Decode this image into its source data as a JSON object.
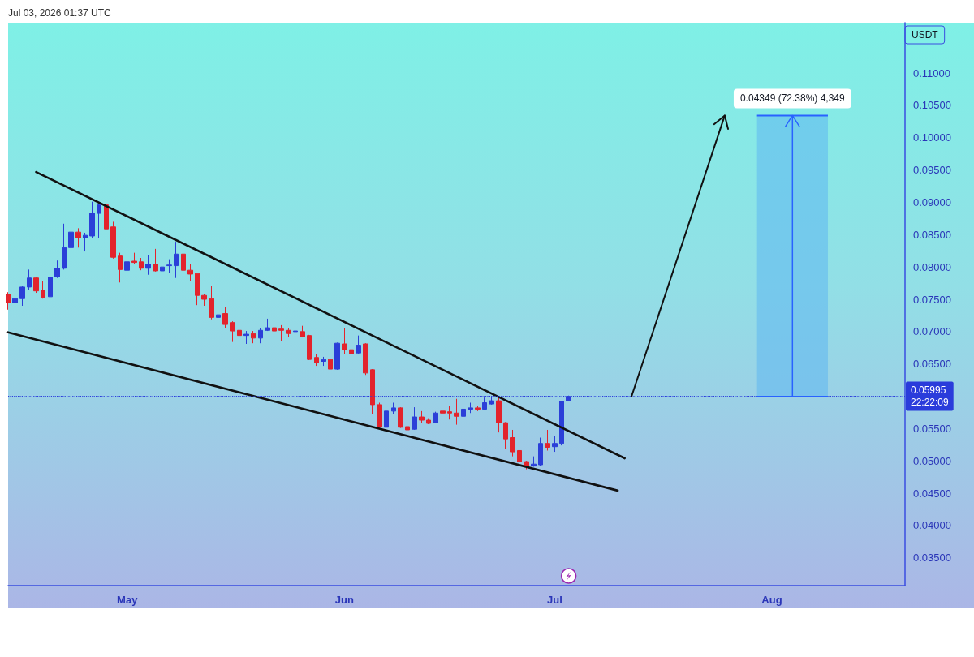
{
  "chart_data": {
    "type": "candlestick",
    "annotations": [
      "Jul 03, 2026 01:37 UTC"
    ],
    "ylabel": "USDT",
    "xlim": [
      "2026-04-14",
      "2026-08-20"
    ],
    "xticks": [
      {
        "value": "2026-05-01",
        "label": "May"
      },
      {
        "value": "2026-06-01",
        "label": "Jun"
      },
      {
        "value": "2026-07-01",
        "label": "Jul"
      },
      {
        "value": "2026-08-01",
        "label": "Aug"
      }
    ],
    "ylim": [
      0.0307,
      0.1178
    ],
    "yticks": [
      {
        "value": 0.035,
        "label": "0.03500"
      },
      {
        "value": 0.04,
        "label": "0.04000"
      },
      {
        "value": 0.045,
        "label": "0.04500"
      },
      {
        "value": 0.05,
        "label": "0.05000"
      },
      {
        "value": 0.055,
        "label": "0.05500"
      },
      {
        "value": 0.065,
        "label": "0.06500"
      },
      {
        "value": 0.07,
        "label": "0.07000"
      },
      {
        "value": 0.075,
        "label": "0.07500"
      },
      {
        "value": 0.08,
        "label": "0.08000"
      },
      {
        "value": 0.085,
        "label": "0.08500"
      },
      {
        "value": 0.09,
        "label": "0.09000"
      },
      {
        "value": 0.095,
        "label": "0.09500"
      },
      {
        "value": 0.1,
        "label": "0.10000"
      },
      {
        "value": 0.105,
        "label": "0.10500"
      },
      {
        "value": 0.11,
        "label": "0.11000"
      }
    ],
    "series": [
      {
        "x": [
          "2026-04-14",
          "2026-04-15",
          "2026-04-16",
          "2026-04-17",
          "2026-04-18",
          "2026-04-19",
          "2026-04-20",
          "2026-04-21",
          "2026-04-22",
          "2026-04-23",
          "2026-04-24",
          "2026-04-25",
          "2026-04-26",
          "2026-04-27",
          "2026-04-28",
          "2026-04-29",
          "2026-04-30",
          "2026-05-01",
          "2026-05-02",
          "2026-05-03",
          "2026-05-04",
          "2026-05-05",
          "2026-05-06",
          "2026-05-07",
          "2026-05-08",
          "2026-05-09",
          "2026-05-10",
          "2026-05-11",
          "2026-05-12",
          "2026-05-13",
          "2026-05-14",
          "2026-05-15",
          "2026-05-16",
          "2026-05-17",
          "2026-05-18",
          "2026-05-19",
          "2026-05-20",
          "2026-05-21",
          "2026-05-22",
          "2026-05-23",
          "2026-05-24",
          "2026-05-25",
          "2026-05-26",
          "2026-05-27",
          "2026-05-28",
          "2026-05-29",
          "2026-05-30",
          "2026-05-31",
          "2026-06-01",
          "2026-06-02",
          "2026-06-03",
          "2026-06-04",
          "2026-06-05",
          "2026-06-06",
          "2026-06-07",
          "2026-06-08",
          "2026-06-09",
          "2026-06-10",
          "2026-06-11",
          "2026-06-12",
          "2026-06-13",
          "2026-06-14",
          "2026-06-15",
          "2026-06-16",
          "2026-06-17",
          "2026-06-18",
          "2026-06-19",
          "2026-06-20",
          "2026-06-21",
          "2026-06-22",
          "2026-06-23",
          "2026-06-24",
          "2026-06-25",
          "2026-06-26",
          "2026-06-27",
          "2026-06-28",
          "2026-06-29",
          "2026-06-30",
          "2026-07-01",
          "2026-07-02",
          "2026-07-03"
        ],
        "ohlc": [
          [
            0.0758,
            0.0761,
            0.0734,
            0.0745
          ],
          [
            0.0745,
            0.0756,
            0.0738,
            0.0751
          ],
          [
            0.0751,
            0.0771,
            0.074,
            0.0769
          ],
          [
            0.0769,
            0.0796,
            0.0764,
            0.0783
          ],
          [
            0.0783,
            0.0784,
            0.076,
            0.0763
          ],
          [
            0.0764,
            0.0778,
            0.0751,
            0.0753
          ],
          [
            0.0754,
            0.0814,
            0.0752,
            0.0784
          ],
          [
            0.0785,
            0.081,
            0.0783,
            0.0798
          ],
          [
            0.0798,
            0.0867,
            0.0796,
            0.083
          ],
          [
            0.083,
            0.0865,
            0.0813,
            0.0854
          ],
          [
            0.0854,
            0.086,
            0.083,
            0.0845
          ],
          [
            0.0845,
            0.0853,
            0.0824,
            0.0849
          ],
          [
            0.0848,
            0.0901,
            0.0845,
            0.0883
          ],
          [
            0.0883,
            0.0898,
            0.0845,
            0.0896
          ],
          [
            0.0896,
            0.0897,
            0.0858,
            0.0859
          ],
          [
            0.0862,
            0.087,
            0.0813,
            0.0815
          ],
          [
            0.0817,
            0.0822,
            0.0776,
            0.0796
          ],
          [
            0.0795,
            0.0824,
            0.0794,
            0.0808
          ],
          [
            0.0809,
            0.0822,
            0.0805,
            0.0807
          ],
          [
            0.0808,
            0.0814,
            0.0795,
            0.0798
          ],
          [
            0.0798,
            0.0818,
            0.0788,
            0.0804
          ],
          [
            0.0804,
            0.0828,
            0.0793,
            0.0794
          ],
          [
            0.0794,
            0.0814,
            0.0791,
            0.08
          ],
          [
            0.0802,
            0.0812,
            0.0791,
            0.0803
          ],
          [
            0.0802,
            0.0839,
            0.0783,
            0.082
          ],
          [
            0.082,
            0.0848,
            0.0788,
            0.0795
          ],
          [
            0.0795,
            0.0804,
            0.0778,
            0.0789
          ],
          [
            0.079,
            0.0791,
            0.0741,
            0.0756
          ],
          [
            0.0756,
            0.0758,
            0.074,
            0.075
          ],
          [
            0.0751,
            0.0771,
            0.0719,
            0.0722
          ],
          [
            0.0722,
            0.0739,
            0.0714,
            0.0726
          ],
          [
            0.0728,
            0.0738,
            0.0705,
            0.0711
          ],
          [
            0.0714,
            0.0716,
            0.0684,
            0.0701
          ],
          [
            0.0702,
            0.0706,
            0.0684,
            0.0694
          ],
          [
            0.0694,
            0.0701,
            0.0681,
            0.0696
          ],
          [
            0.0697,
            0.0701,
            0.0682,
            0.069
          ],
          [
            0.069,
            0.0705,
            0.0682,
            0.0702
          ],
          [
            0.0702,
            0.072,
            0.0701,
            0.0706
          ],
          [
            0.0706,
            0.0714,
            0.0697,
            0.0701
          ],
          [
            0.0704,
            0.071,
            0.0685,
            0.0702
          ],
          [
            0.0702,
            0.0706,
            0.0691,
            0.0697
          ],
          [
            0.07,
            0.0707,
            0.0697,
            0.0701
          ],
          [
            0.07,
            0.0709,
            0.0691,
            0.0692
          ],
          [
            0.0694,
            0.0695,
            0.0656,
            0.0657
          ],
          [
            0.066,
            0.0665,
            0.0647,
            0.0652
          ],
          [
            0.0654,
            0.0661,
            0.0647,
            0.0657
          ],
          [
            0.0657,
            0.0661,
            0.064,
            0.0642
          ],
          [
            0.0642,
            0.0683,
            0.0641,
            0.0682
          ],
          [
            0.0681,
            0.0705,
            0.0665,
            0.0672
          ],
          [
            0.0672,
            0.069,
            0.0665,
            0.0666
          ],
          [
            0.0667,
            0.0694,
            0.0665,
            0.0679
          ],
          [
            0.0681,
            0.0682,
            0.0633,
            0.0636
          ],
          [
            0.0641,
            0.0642,
            0.0573,
            0.0587
          ],
          [
            0.0587,
            0.059,
            0.0551,
            0.0552
          ],
          [
            0.0552,
            0.059,
            0.0551,
            0.0577
          ],
          [
            0.0577,
            0.059,
            0.0573,
            0.0582
          ],
          [
            0.0582,
            0.0583,
            0.0551,
            0.0552
          ],
          [
            0.0553,
            0.0564,
            0.0539,
            0.0548
          ],
          [
            0.0549,
            0.0583,
            0.0548,
            0.0568
          ],
          [
            0.0568,
            0.0577,
            0.0559,
            0.0563
          ],
          [
            0.0563,
            0.0566,
            0.0557,
            0.0558
          ],
          [
            0.0559,
            0.0576,
            0.0558,
            0.0574
          ],
          [
            0.0577,
            0.0585,
            0.0562,
            0.0574
          ],
          [
            0.0576,
            0.0585,
            0.0564,
            0.0574
          ],
          [
            0.0574,
            0.0596,
            0.0556,
            0.0569
          ],
          [
            0.0569,
            0.059,
            0.0559,
            0.058
          ],
          [
            0.058,
            0.059,
            0.0574,
            0.0582
          ],
          [
            0.0582,
            0.0585,
            0.0577,
            0.058
          ],
          [
            0.058,
            0.0598,
            0.0579,
            0.059
          ],
          [
            0.0588,
            0.06,
            0.0587,
            0.0593
          ],
          [
            0.0593,
            0.0598,
            0.0544,
            0.0559
          ],
          [
            0.0559,
            0.056,
            0.0519,
            0.0534
          ],
          [
            0.0536,
            0.0548,
            0.0507,
            0.0514
          ],
          [
            0.0516,
            0.0519,
            0.0498,
            0.0499
          ],
          [
            0.0499,
            0.05,
            0.0487,
            0.0492
          ],
          [
            0.0492,
            0.0507,
            0.0491,
            0.0495
          ],
          [
            0.0494,
            0.0536,
            0.0492,
            0.0527
          ],
          [
            0.0527,
            0.0548,
            0.0516,
            0.0521
          ],
          [
            0.0522,
            0.0539,
            0.0514,
            0.0527
          ],
          [
            0.0527,
            0.0593,
            0.0524,
            0.0592
          ],
          [
            0.0593,
            0.0601,
            0.0592,
            0.05995
          ]
        ],
        "colors": [
          "#e3232c",
          "#2b3fd8",
          "#2b3fd8",
          "#2b3fd8",
          "#e3232c",
          "#e3232c",
          "#2b3fd8",
          "#2b3fd8",
          "#2b3fd8",
          "#2b3fd8",
          "#e3232c",
          "#2b3fd8",
          "#2b3fd8",
          "#2b3fd8",
          "#e3232c",
          "#e3232c",
          "#e3232c",
          "#2b3fd8",
          "#e3232c",
          "#e3232c",
          "#2b3fd8",
          "#e3232c",
          "#2b3fd8",
          "#2b3fd8",
          "#2b3fd8",
          "#e3232c",
          "#e3232c",
          "#e3232c",
          "#e3232c",
          "#e3232c",
          "#2b3fd8",
          "#e3232c",
          "#e3232c",
          "#e3232c",
          "#2b3fd8",
          "#e3232c",
          "#2b3fd8",
          "#2b3fd8",
          "#e3232c",
          "#e3232c",
          "#e3232c",
          "#2b3fd8",
          "#e3232c",
          "#e3232c",
          "#e3232c",
          "#2b3fd8",
          "#e3232c",
          "#2b3fd8",
          "#e3232c",
          "#e3232c",
          "#2b3fd8",
          "#e3232c",
          "#e3232c",
          "#e3232c",
          "#2b3fd8",
          "#2b3fd8",
          "#e3232c",
          "#e3232c",
          "#2b3fd8",
          "#e3232c",
          "#e3232c",
          "#2b3fd8",
          "#e3232c",
          "#e3232c",
          "#e3232c",
          "#2b3fd8",
          "#2b3fd8",
          "#e3232c",
          "#2b3fd8",
          "#2b3fd8",
          "#e3232c",
          "#e3232c",
          "#e3232c",
          "#e3232c",
          "#e3232c",
          "#2b3fd8",
          "#2b3fd8",
          "#e3232c",
          "#2b3fd8",
          "#2b3fd8",
          "#2b3fd8"
        ]
      },
      {
        "type": "line",
        "color": "#111111",
        "x": [
          "2026-04-18",
          "2026-07-11"
        ],
        "values": [
          0.0947,
          0.0504
        ]
      },
      {
        "type": "line",
        "color": "#111111",
        "x": [
          "2026-04-14",
          "2026-07-10"
        ],
        "values": [
          0.0699,
          0.0454
        ]
      }
    ],
    "ref_lines": [
      {
        "axis": "y",
        "value": 0.05995,
        "label": "0.05995\n22:22:09",
        "color": "#2a3cdb",
        "line_style": "dotted"
      }
    ],
    "bands": [
      {
        "axis": "y",
        "from": 0.05995,
        "to": 0.10344,
        "label": "0.04349 (72.38%) 4,349",
        "color": "#5eb6f0"
      }
    ]
  }
}
